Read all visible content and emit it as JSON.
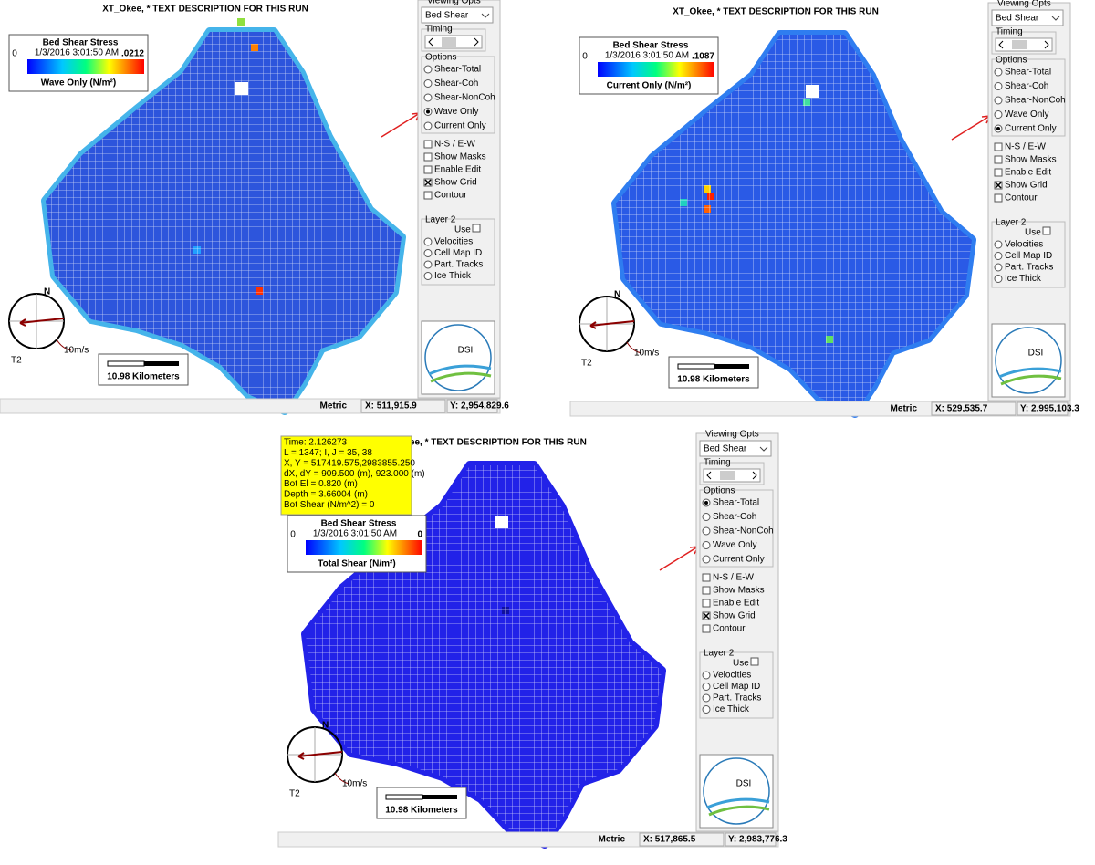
{
  "panels": [
    {
      "title": "XT_Okee, *   TEXT DESCRIPTION FOR THIS RUN",
      "legend": {
        "title": "Bed Shear Stress",
        "min": "0",
        "date": "1/3/2016 3:01:50 AM",
        "max": ".0212",
        "label": "Wave Only (N/m²)"
      },
      "side": {
        "viewing_opts": "Viewing Opts",
        "dropdown": "Bed Shear",
        "timing": "Timing",
        "options_label": "Options",
        "options": [
          {
            "label": "Shear-Total",
            "enabled": true,
            "selected": false
          },
          {
            "label": "Shear-Coh",
            "enabled": false,
            "selected": false
          },
          {
            "label": "Shear-NonCoh",
            "enabled": false,
            "selected": false
          },
          {
            "label": "Wave Only",
            "enabled": true,
            "selected": true
          },
          {
            "label": "Current Only",
            "enabled": true,
            "selected": false
          }
        ],
        "checkboxes": [
          {
            "label": "N-S / E-W",
            "enabled": true,
            "checked": false
          },
          {
            "label": "Show Masks",
            "enabled": true,
            "checked": false
          },
          {
            "label": "Enable Edit",
            "enabled": false,
            "checked": false
          },
          {
            "label": "Show Grid",
            "enabled": true,
            "checked": true
          },
          {
            "label": "Contour",
            "enabled": true,
            "checked": false
          }
        ],
        "layer_label": "Layer 2",
        "use": "Use",
        "layer_items": [
          {
            "label": "Velocities",
            "enabled": true
          },
          {
            "label": "Cell Map ID",
            "enabled": true
          },
          {
            "label": "Part. Tracks",
            "enabled": false
          },
          {
            "label": "Ice Thick",
            "enabled": false
          }
        ],
        "logo": "DSI"
      },
      "compass": {
        "north": "N",
        "speed": "10m/s",
        "station": "T2"
      },
      "scale": "10.98 Kilometers",
      "status": {
        "units": "Metric",
        "x": "X: 511,915.9",
        "y": "Y: 2,954,829.6"
      }
    },
    {
      "title": "XT_Okee, *   TEXT DESCRIPTION FOR THIS RUN",
      "legend": {
        "title": "Bed Shear Stress",
        "min": "0",
        "date": "1/3/2016 3:01:50 AM",
        "max": ".1087",
        "label": "Current Only (N/m²)"
      },
      "side": {
        "viewing_opts": "Viewing Opts",
        "dropdown": "Bed Shear",
        "timing": "Timing",
        "options_label": "Options",
        "options": [
          {
            "label": "Shear-Total",
            "enabled": true,
            "selected": false
          },
          {
            "label": "Shear-Coh",
            "enabled": false,
            "selected": false
          },
          {
            "label": "Shear-NonCoh",
            "enabled": false,
            "selected": false
          },
          {
            "label": "Wave Only",
            "enabled": true,
            "selected": false
          },
          {
            "label": "Current Only",
            "enabled": true,
            "selected": true
          }
        ],
        "checkboxes": [
          {
            "label": "N-S / E-W",
            "enabled": true,
            "checked": false
          },
          {
            "label": "Show Masks",
            "enabled": true,
            "checked": false
          },
          {
            "label": "Enable Edit",
            "enabled": false,
            "checked": false
          },
          {
            "label": "Show Grid",
            "enabled": true,
            "checked": true
          },
          {
            "label": "Contour",
            "enabled": true,
            "checked": false
          }
        ],
        "layer_label": "Layer 2",
        "use": "Use",
        "layer_items": [
          {
            "label": "Velocities",
            "enabled": true
          },
          {
            "label": "Cell Map ID",
            "enabled": true
          },
          {
            "label": "Part. Tracks",
            "enabled": false
          },
          {
            "label": "Ice Thick",
            "enabled": false
          }
        ],
        "logo": "DSI"
      },
      "compass": {
        "north": "N",
        "speed": "10m/s",
        "station": "T2"
      },
      "scale": "10.98 Kilometers",
      "status": {
        "units": "Metric",
        "x": "X: 529,535.7",
        "y": "Y: 2,995,103.3"
      }
    },
    {
      "title": "XT_Okee, *   TEXT DESCRIPTION FOR THIS RUN",
      "info": [
        "Time: 2.126273",
        "L = 1347;  I, J =  35, 38",
        "X, Y = 517419.575,2983855.250",
        "dX, dY = 909.500 (m), 923.000 (m)",
        "Bot El = 0.820 (m)",
        "Depth =  3.66004 (m)",
        "Bot Shear (N/m^2) =  0"
      ],
      "legend": {
        "title": "Bed Shear Stress",
        "min": "0",
        "date": "1/3/2016 3:01:50 AM",
        "max": "0",
        "label": "Total Shear (N/m²)"
      },
      "side": {
        "viewing_opts": "Viewing Opts",
        "dropdown": "Bed Shear",
        "timing": "Timing",
        "options_label": "Options",
        "options": [
          {
            "label": "Shear-Total",
            "enabled": true,
            "selected": true
          },
          {
            "label": "Shear-Coh",
            "enabled": false,
            "selected": false
          },
          {
            "label": "Shear-NonCoh",
            "enabled": false,
            "selected": false
          },
          {
            "label": "Wave Only",
            "enabled": true,
            "selected": false
          },
          {
            "label": "Current Only",
            "enabled": true,
            "selected": false
          }
        ],
        "checkboxes": [
          {
            "label": "N-S / E-W",
            "enabled": true,
            "checked": false
          },
          {
            "label": "Show Masks",
            "enabled": true,
            "checked": false
          },
          {
            "label": "Enable Edit",
            "enabled": false,
            "checked": false
          },
          {
            "label": "Show Grid",
            "enabled": true,
            "checked": true
          },
          {
            "label": "Contour",
            "enabled": true,
            "checked": false
          }
        ],
        "layer_label": "Layer 2",
        "use": "Use",
        "layer_items": [
          {
            "label": "Velocities",
            "enabled": true
          },
          {
            "label": "Cell Map ID",
            "enabled": true
          },
          {
            "label": "Part. Tracks",
            "enabled": false
          },
          {
            "label": "Ice Thick",
            "enabled": false
          }
        ],
        "logo": "DSI"
      },
      "compass": {
        "north": "N",
        "speed": "10m/s",
        "station": "T2"
      },
      "scale": "10.98 Kilometers",
      "status": {
        "units": "Metric",
        "x": "X: 517,865.5",
        "y": "Y: 2,983,776.3"
      }
    }
  ]
}
